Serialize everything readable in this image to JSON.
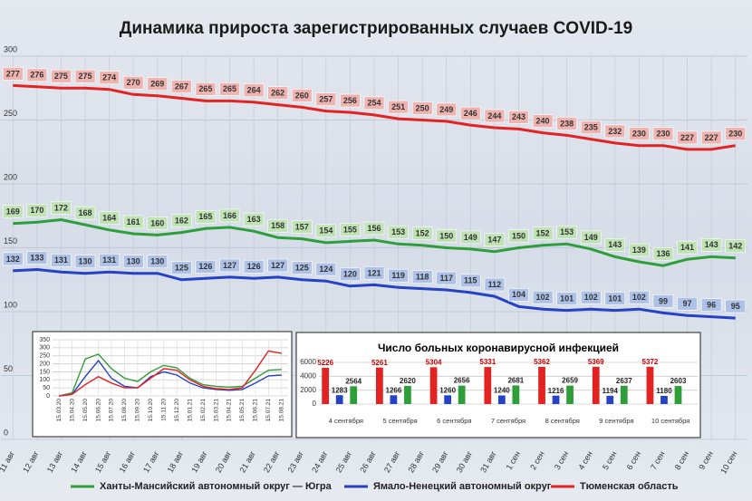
{
  "chart_data": [
    {
      "type": "line",
      "title": "Динамика прироста зарегистрированных случаев COVID-19",
      "categories": [
        "11 авг",
        "12 авг",
        "13 авг",
        "14 авг",
        "15 авг",
        "16 авг",
        "17 авг",
        "18 авг",
        "19 авг",
        "20 авг",
        "21 авг",
        "22 авг",
        "23 авг",
        "24 авг",
        "25 авг",
        "26 авг",
        "27 авг",
        "28 авг",
        "29 авг",
        "30 авг",
        "31 авг",
        "1 сен",
        "2 сен",
        "3 сен",
        "4 сен",
        "5 сен",
        "6 сен",
        "7 сен",
        "8 сен",
        "9 сен",
        "10 сен"
      ],
      "series": [
        {
          "name": "Ханты-Мансийский автономный округ — Югра",
          "color": "#2e9e3a",
          "label_fill": "#bfe3b4",
          "values": [
            169,
            170,
            172,
            168,
            164,
            161,
            160,
            162,
            165,
            166,
            163,
            158,
            157,
            154,
            155,
            156,
            153,
            152,
            150,
            149,
            147,
            150,
            152,
            153,
            149,
            143,
            139,
            136,
            141,
            143,
            142
          ]
        },
        {
          "name": "Ямало-Ненецкий автономный округ",
          "color": "#2541c4",
          "label_fill": "#aec2e8",
          "values": [
            132,
            133,
            131,
            130,
            131,
            130,
            130,
            125,
            126,
            127,
            126,
            127,
            125,
            124,
            120,
            121,
            119,
            118,
            117,
            115,
            112,
            104,
            102,
            101,
            102,
            101,
            102,
            99,
            97,
            96,
            95
          ]
        },
        {
          "name": "Тюменская область",
          "color": "#e32222",
          "label_fill": "#f0b4b0",
          "values": [
            277,
            276,
            275,
            275,
            274,
            270,
            269,
            267,
            265,
            265,
            264,
            262,
            260,
            257,
            256,
            254,
            251,
            250,
            249,
            246,
            244,
            243,
            240,
            238,
            235,
            232,
            230,
            230,
            227,
            227,
            230
          ]
        }
      ],
      "ylim": [
        0,
        300
      ],
      "yticks": [
        0,
        50,
        100,
        150,
        200,
        250,
        300
      ],
      "grid": true,
      "legend": "bottom"
    },
    {
      "type": "line",
      "categories": [
        "15.03.20",
        "15.04.20",
        "15.05.20",
        "15.06.20",
        "15.07.20",
        "15.08.20",
        "15.09.20",
        "15.10.20",
        "15.11.20",
        "15.12.20",
        "15.01.21",
        "15.02.21",
        "15.03.21",
        "15.04.21",
        "15.05.21",
        "15.06.21",
        "15.07.21",
        "15.08.21"
      ],
      "series": [
        {
          "color": "#2e9e3a",
          "values": [
            0,
            20,
            230,
            260,
            170,
            110,
            90,
            150,
            190,
            175,
            110,
            70,
            60,
            55,
            60,
            110,
            160,
            165
          ]
        },
        {
          "color": "#2541c4",
          "values": [
            0,
            10,
            120,
            220,
            110,
            60,
            50,
            120,
            150,
            130,
            80,
            50,
            40,
            35,
            40,
            80,
            125,
            130
          ]
        },
        {
          "color": "#e32222",
          "values": [
            0,
            10,
            70,
            120,
            80,
            50,
            50,
            110,
            170,
            160,
            100,
            60,
            45,
            40,
            50,
            160,
            280,
            265
          ]
        }
      ],
      "ylim": [
        0,
        350
      ],
      "yticks": [
        0,
        50,
        100,
        150,
        200,
        250,
        300,
        350
      ],
      "grid": true
    },
    {
      "type": "bar",
      "title": "Число больных коронавирусной  инфекцией",
      "categories": [
        "4 сентября",
        "5 сентября",
        "6 сентября",
        "7 сентября",
        "8 сентября",
        "9 сентября",
        "10 сентября"
      ],
      "series": [
        {
          "color": "#e32222",
          "values": [
            5226,
            5261,
            5304,
            5331,
            5362,
            5369,
            5372
          ]
        },
        {
          "color": "#2541c4",
          "values": [
            1283,
            1266,
            1260,
            1240,
            1216,
            1194,
            1180
          ]
        },
        {
          "color": "#2e9e3a",
          "values": [
            2564,
            2620,
            2656,
            2681,
            2659,
            2637,
            2603
          ]
        }
      ],
      "ylim": [
        0,
        6000
      ],
      "yticks": [
        0,
        2000,
        4000,
        6000
      ],
      "grid": true
    }
  ]
}
